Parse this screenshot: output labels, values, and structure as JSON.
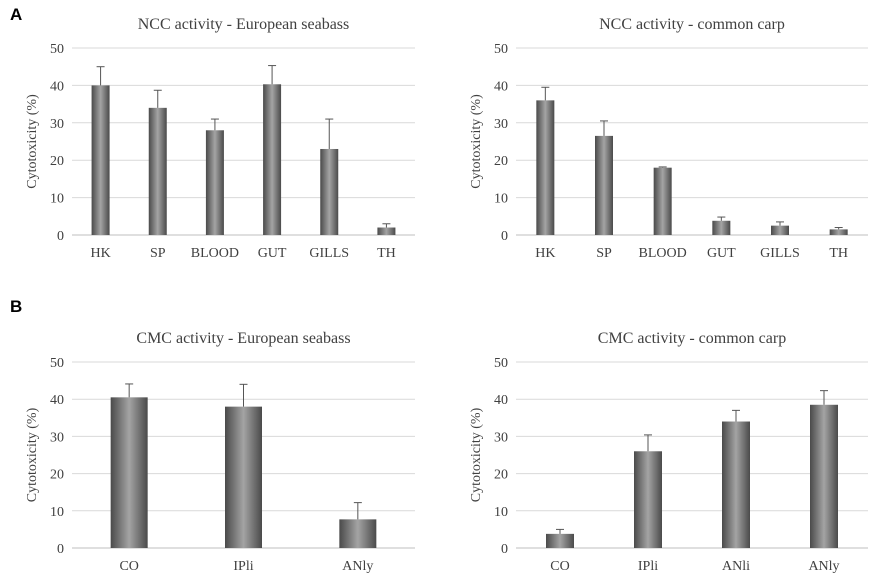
{
  "panels": {
    "a": "A",
    "b": "B"
  },
  "chart_data": [
    {
      "type": "bar",
      "title": "NCC activity - European seabass",
      "ylabel": "Cytotoxicity (%)",
      "xlabel": "",
      "ylim": [
        0,
        50
      ],
      "yticks": [
        0,
        10,
        20,
        30,
        40,
        50
      ],
      "grid": true,
      "categories": [
        "HK",
        "SP",
        "BLOOD",
        "GUT",
        "GILLS",
        "TH"
      ],
      "values": [
        40,
        34,
        28,
        40.3,
        23,
        2
      ],
      "errors": [
        5,
        4.7,
        3,
        5,
        8,
        1
      ]
    },
    {
      "type": "bar",
      "title": "NCC activity - common carp",
      "ylabel": "Cytotoxicity (%)",
      "xlabel": "",
      "ylim": [
        0,
        50
      ],
      "yticks": [
        0,
        10,
        20,
        30,
        40,
        50
      ],
      "grid": true,
      "categories": [
        "HK",
        "SP",
        "BLOOD",
        "GUT",
        "GILLS",
        "TH"
      ],
      "values": [
        36,
        26.5,
        18,
        3.8,
        2.5,
        1.5
      ],
      "errors": [
        3.5,
        4,
        0.2,
        1,
        1,
        0.5
      ]
    },
    {
      "type": "bar",
      "title": "CMC activity - European seabass",
      "ylabel": "Cytotoxicity (%)",
      "xlabel": "",
      "ylim": [
        0,
        50
      ],
      "yticks": [
        0,
        10,
        20,
        30,
        40,
        50
      ],
      "grid": true,
      "categories": [
        "CO",
        "IPli",
        "ANly"
      ],
      "values": [
        40.5,
        38,
        7.7
      ],
      "errors": [
        3.6,
        6,
        4.5
      ]
    },
    {
      "type": "bar",
      "title": "CMC activity - common carp",
      "ylabel": "Cytotoxicity (%)",
      "xlabel": "",
      "ylim": [
        0,
        50
      ],
      "yticks": [
        0,
        10,
        20,
        30,
        40,
        50
      ],
      "grid": true,
      "categories": [
        "CO",
        "IPli",
        "ANli",
        "ANly"
      ],
      "values": [
        3.8,
        26,
        34,
        38.5
      ],
      "errors": [
        1.2,
        4.4,
        3,
        3.8
      ]
    }
  ]
}
